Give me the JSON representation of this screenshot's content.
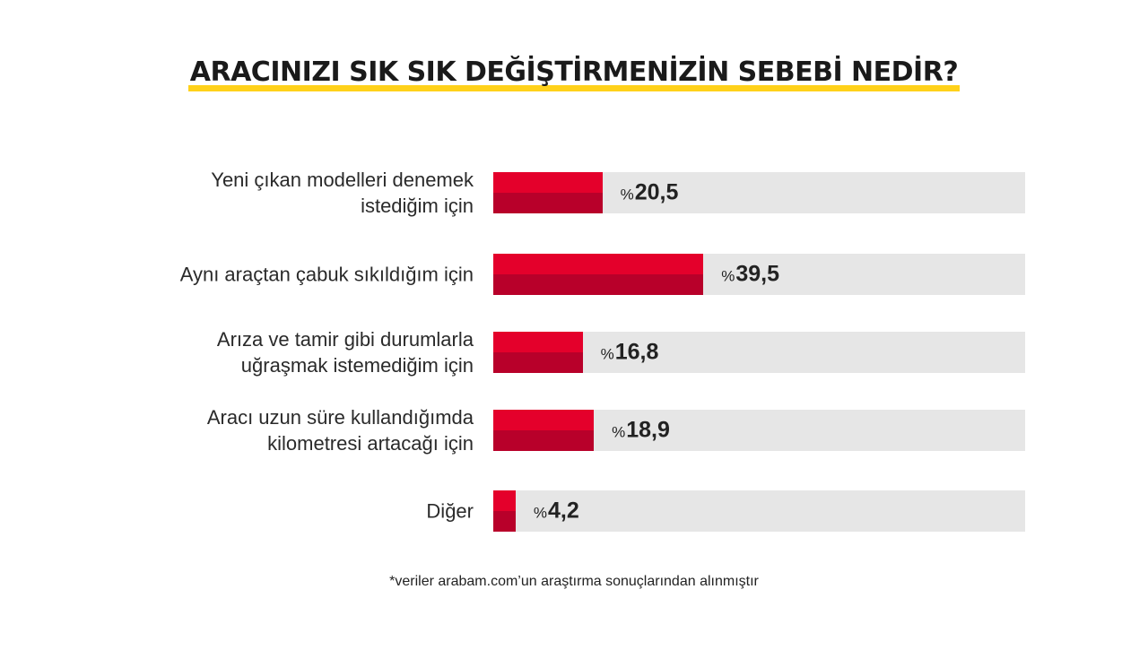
{
  "chart_data": {
    "type": "bar",
    "orientation": "horizontal",
    "title": "ARACINIZI SIK SIK DEĞİŞTİRMENİZİN SEBEBİ NEDİR?",
    "categories": [
      "Yeni çıkan modelleri denemek istediğim için",
      "Aynı araçtan çabuk sıkıldığım için",
      "Arıza ve tamir gibi durumlarla uğraşmak istemediğim için",
      "Aracı uzun süre kullandığımda kilometresi artacağı için",
      "Diğer"
    ],
    "labels": [
      [
        "Yeni çıkan modelleri denemek",
        "istediğim için"
      ],
      [
        "Aynı araçtan çabuk sıkıldığım için"
      ],
      [
        "Arıza ve tamir gibi durumlarla",
        "uğraşmak istemediğim için"
      ],
      [
        "Aracı uzun süre kullandığımda",
        "kilometresi artacağı için"
      ],
      [
        "Diğer"
      ]
    ],
    "values": [
      20.5,
      39.5,
      16.8,
      18.9,
      4.2
    ],
    "value_labels": [
      "20,5",
      "39,5",
      "16,8",
      "18,9",
      "4,2"
    ],
    "value_prefix": "%",
    "xlim": [
      0,
      100
    ],
    "colors": {
      "bar_top": "#e4002b",
      "bar_bottom": "#b8002a",
      "track": "#e6e6e6",
      "title_underline": "#ffd11a"
    }
  },
  "footnote": "*veriler arabam.com’un araştırma sonuçlarından alınmıştır"
}
